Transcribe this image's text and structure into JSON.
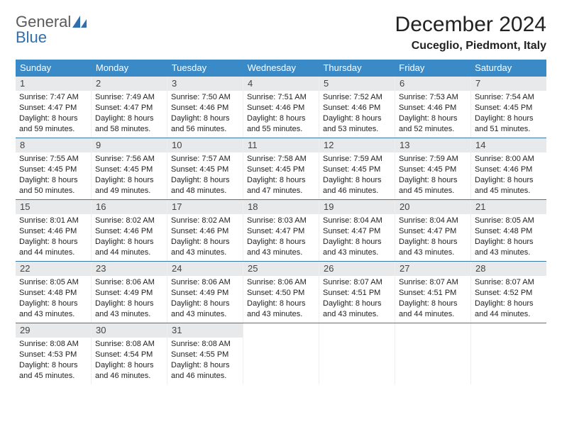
{
  "logo": {
    "word1": "General",
    "word2": "Blue"
  },
  "title": "December 2024",
  "location": "Cuceglio, Piedmont, Italy",
  "colors": {
    "header_bg": "#3a8ac7",
    "week_border": "#3a78a8",
    "daynum_bg": "#e8e9ea",
    "logo_gray": "#5a5a5a",
    "logo_blue": "#2f6fb0"
  },
  "dow": [
    "Sunday",
    "Monday",
    "Tuesday",
    "Wednesday",
    "Thursday",
    "Friday",
    "Saturday"
  ],
  "weeks": [
    [
      {
        "n": "1",
        "sr": "Sunrise: 7:47 AM",
        "ss": "Sunset: 4:47 PM",
        "dl1": "Daylight: 8 hours",
        "dl2": "and 59 minutes."
      },
      {
        "n": "2",
        "sr": "Sunrise: 7:49 AM",
        "ss": "Sunset: 4:47 PM",
        "dl1": "Daylight: 8 hours",
        "dl2": "and 58 minutes."
      },
      {
        "n": "3",
        "sr": "Sunrise: 7:50 AM",
        "ss": "Sunset: 4:46 PM",
        "dl1": "Daylight: 8 hours",
        "dl2": "and 56 minutes."
      },
      {
        "n": "4",
        "sr": "Sunrise: 7:51 AM",
        "ss": "Sunset: 4:46 PM",
        "dl1": "Daylight: 8 hours",
        "dl2": "and 55 minutes."
      },
      {
        "n": "5",
        "sr": "Sunrise: 7:52 AM",
        "ss": "Sunset: 4:46 PM",
        "dl1": "Daylight: 8 hours",
        "dl2": "and 53 minutes."
      },
      {
        "n": "6",
        "sr": "Sunrise: 7:53 AM",
        "ss": "Sunset: 4:46 PM",
        "dl1": "Daylight: 8 hours",
        "dl2": "and 52 minutes."
      },
      {
        "n": "7",
        "sr": "Sunrise: 7:54 AM",
        "ss": "Sunset: 4:45 PM",
        "dl1": "Daylight: 8 hours",
        "dl2": "and 51 minutes."
      }
    ],
    [
      {
        "n": "8",
        "sr": "Sunrise: 7:55 AM",
        "ss": "Sunset: 4:45 PM",
        "dl1": "Daylight: 8 hours",
        "dl2": "and 50 minutes."
      },
      {
        "n": "9",
        "sr": "Sunrise: 7:56 AM",
        "ss": "Sunset: 4:45 PM",
        "dl1": "Daylight: 8 hours",
        "dl2": "and 49 minutes."
      },
      {
        "n": "10",
        "sr": "Sunrise: 7:57 AM",
        "ss": "Sunset: 4:45 PM",
        "dl1": "Daylight: 8 hours",
        "dl2": "and 48 minutes."
      },
      {
        "n": "11",
        "sr": "Sunrise: 7:58 AM",
        "ss": "Sunset: 4:45 PM",
        "dl1": "Daylight: 8 hours",
        "dl2": "and 47 minutes."
      },
      {
        "n": "12",
        "sr": "Sunrise: 7:59 AM",
        "ss": "Sunset: 4:45 PM",
        "dl1": "Daylight: 8 hours",
        "dl2": "and 46 minutes."
      },
      {
        "n": "13",
        "sr": "Sunrise: 7:59 AM",
        "ss": "Sunset: 4:45 PM",
        "dl1": "Daylight: 8 hours",
        "dl2": "and 45 minutes."
      },
      {
        "n": "14",
        "sr": "Sunrise: 8:00 AM",
        "ss": "Sunset: 4:46 PM",
        "dl1": "Daylight: 8 hours",
        "dl2": "and 45 minutes."
      }
    ],
    [
      {
        "n": "15",
        "sr": "Sunrise: 8:01 AM",
        "ss": "Sunset: 4:46 PM",
        "dl1": "Daylight: 8 hours",
        "dl2": "and 44 minutes."
      },
      {
        "n": "16",
        "sr": "Sunrise: 8:02 AM",
        "ss": "Sunset: 4:46 PM",
        "dl1": "Daylight: 8 hours",
        "dl2": "and 44 minutes."
      },
      {
        "n": "17",
        "sr": "Sunrise: 8:02 AM",
        "ss": "Sunset: 4:46 PM",
        "dl1": "Daylight: 8 hours",
        "dl2": "and 43 minutes."
      },
      {
        "n": "18",
        "sr": "Sunrise: 8:03 AM",
        "ss": "Sunset: 4:47 PM",
        "dl1": "Daylight: 8 hours",
        "dl2": "and 43 minutes."
      },
      {
        "n": "19",
        "sr": "Sunrise: 8:04 AM",
        "ss": "Sunset: 4:47 PM",
        "dl1": "Daylight: 8 hours",
        "dl2": "and 43 minutes."
      },
      {
        "n": "20",
        "sr": "Sunrise: 8:04 AM",
        "ss": "Sunset: 4:47 PM",
        "dl1": "Daylight: 8 hours",
        "dl2": "and 43 minutes."
      },
      {
        "n": "21",
        "sr": "Sunrise: 8:05 AM",
        "ss": "Sunset: 4:48 PM",
        "dl1": "Daylight: 8 hours",
        "dl2": "and 43 minutes."
      }
    ],
    [
      {
        "n": "22",
        "sr": "Sunrise: 8:05 AM",
        "ss": "Sunset: 4:48 PM",
        "dl1": "Daylight: 8 hours",
        "dl2": "and 43 minutes."
      },
      {
        "n": "23",
        "sr": "Sunrise: 8:06 AM",
        "ss": "Sunset: 4:49 PM",
        "dl1": "Daylight: 8 hours",
        "dl2": "and 43 minutes."
      },
      {
        "n": "24",
        "sr": "Sunrise: 8:06 AM",
        "ss": "Sunset: 4:49 PM",
        "dl1": "Daylight: 8 hours",
        "dl2": "and 43 minutes."
      },
      {
        "n": "25",
        "sr": "Sunrise: 8:06 AM",
        "ss": "Sunset: 4:50 PM",
        "dl1": "Daylight: 8 hours",
        "dl2": "and 43 minutes."
      },
      {
        "n": "26",
        "sr": "Sunrise: 8:07 AM",
        "ss": "Sunset: 4:51 PM",
        "dl1": "Daylight: 8 hours",
        "dl2": "and 43 minutes."
      },
      {
        "n": "27",
        "sr": "Sunrise: 8:07 AM",
        "ss": "Sunset: 4:51 PM",
        "dl1": "Daylight: 8 hours",
        "dl2": "and 44 minutes."
      },
      {
        "n": "28",
        "sr": "Sunrise: 8:07 AM",
        "ss": "Sunset: 4:52 PM",
        "dl1": "Daylight: 8 hours",
        "dl2": "and 44 minutes."
      }
    ],
    [
      {
        "n": "29",
        "sr": "Sunrise: 8:08 AM",
        "ss": "Sunset: 4:53 PM",
        "dl1": "Daylight: 8 hours",
        "dl2": "and 45 minutes."
      },
      {
        "n": "30",
        "sr": "Sunrise: 8:08 AM",
        "ss": "Sunset: 4:54 PM",
        "dl1": "Daylight: 8 hours",
        "dl2": "and 46 minutes."
      },
      {
        "n": "31",
        "sr": "Sunrise: 8:08 AM",
        "ss": "Sunset: 4:55 PM",
        "dl1": "Daylight: 8 hours",
        "dl2": "and 46 minutes."
      },
      {
        "empty": true
      },
      {
        "empty": true
      },
      {
        "empty": true
      },
      {
        "empty": true
      }
    ]
  ]
}
